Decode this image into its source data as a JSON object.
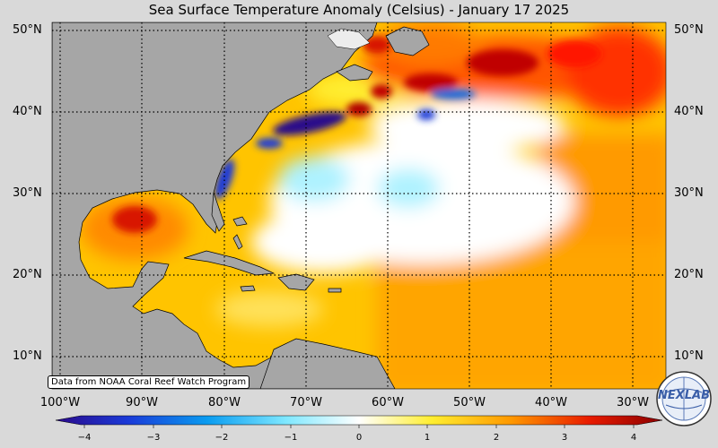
{
  "title": "Sea Surface Temperature Anomaly (Celsius) - January 17 2025",
  "credit": "Data from NOAA Coral Reef Watch Program",
  "lat_labels": [
    "50°N",
    "40°N",
    "30°N",
    "20°N",
    "10°N"
  ],
  "lon_labels": [
    "100°W",
    "90°W",
    "80°W",
    "70°W",
    "60°W",
    "50°W",
    "40°W",
    "30°W"
  ],
  "colorbar": {
    "ticks": [
      "−4",
      "−3",
      "−2",
      "−1",
      "0",
      "1",
      "2",
      "3",
      "4"
    ],
    "range": [
      -4,
      4
    ],
    "colors": [
      "#2b0a8a",
      "#1a3ad8",
      "#0a9cf0",
      "#7fe8ff",
      "#ffffff",
      "#ffee30",
      "#ff9900",
      "#e81b00",
      "#8a0000"
    ]
  },
  "logo": {
    "text": "NEXLAB"
  },
  "colors": {
    "land": "#a6a6a6",
    "background": "#d9d9d9"
  }
}
